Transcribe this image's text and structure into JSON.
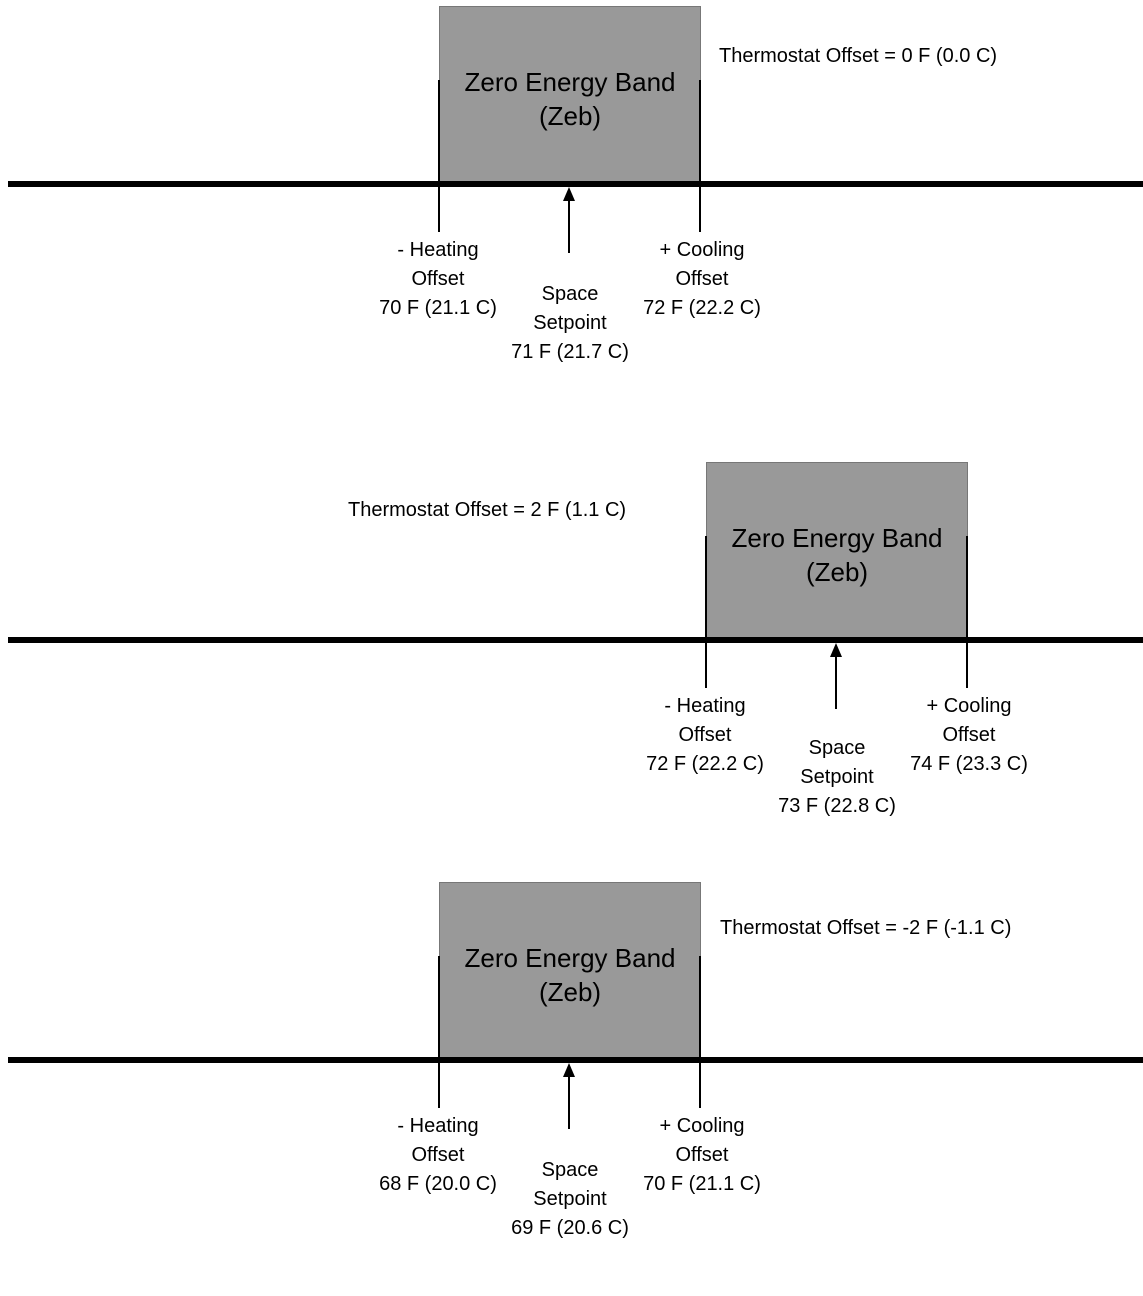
{
  "band": {
    "title_line1": "Zero Energy Band",
    "title_line2": "(Zeb)",
    "fill_color": "#999999"
  },
  "labels": {
    "heating_line1": "- Heating",
    "heating_line2": "Offset",
    "cooling_line1": "+ Cooling",
    "cooling_line2": "Offset",
    "setpoint_line1": "Space",
    "setpoint_line2": "Setpoint"
  },
  "panels": [
    {
      "thermostat_offset": "Thermostat Offset = 0 F (0.0 C)",
      "heating_value": "70 F (21.1 C)",
      "setpoint_value": "71 F (21.7 C)",
      "cooling_value": "72 F (22.2 C)"
    },
    {
      "thermostat_offset": "Thermostat Offset = 2 F (1.1 C)",
      "heating_value": "72 F (22.2 C)",
      "setpoint_value": "73 F (22.8 C)",
      "cooling_value": "74 F (23.3 C)"
    },
    {
      "thermostat_offset": "Thermostat Offset = -2 F (-1.1 C)",
      "heating_value": "68 F (20.0 C)",
      "setpoint_value": "69 F (20.6 C)",
      "cooling_value": "70 F (21.1 C)"
    }
  ]
}
